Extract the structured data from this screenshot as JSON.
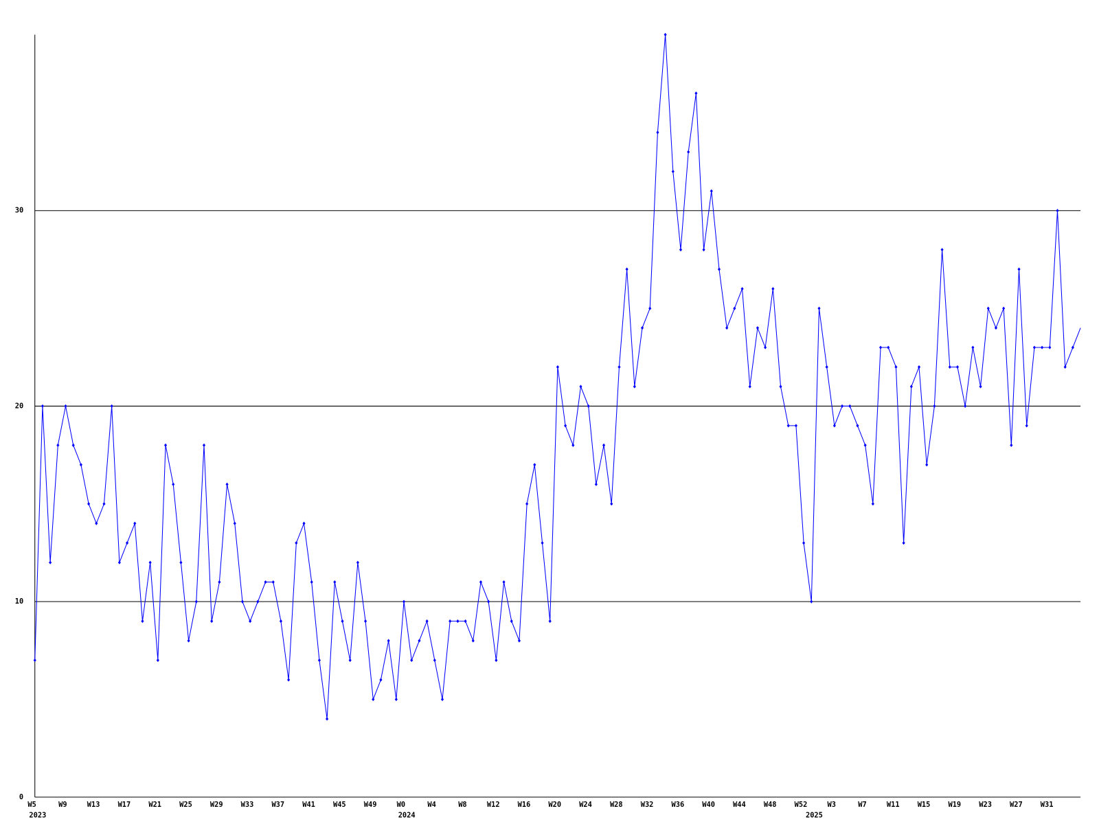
{
  "chart_data": {
    "type": "line",
    "categories": [
      "W5",
      null,
      null,
      null,
      "W9",
      null,
      null,
      null,
      "W13",
      null,
      null,
      null,
      "W17",
      null,
      null,
      null,
      "W21",
      null,
      null,
      null,
      "W25",
      null,
      null,
      null,
      "W29",
      null,
      null,
      null,
      "W33",
      null,
      null,
      null,
      "W37",
      null,
      null,
      null,
      "W41",
      null,
      null,
      null,
      "W45",
      null,
      null,
      null,
      "W49",
      null,
      null,
      null,
      "W0",
      null,
      null,
      null,
      "W4",
      null,
      null,
      null,
      "W8",
      null,
      null,
      null,
      "W12",
      null,
      null,
      null,
      "W16",
      null,
      null,
      null,
      "W20",
      null,
      null,
      null,
      "W24",
      null,
      null,
      null,
      "W28",
      null,
      null,
      null,
      "W32",
      null,
      null,
      null,
      "W36",
      null,
      null,
      null,
      "W40",
      null,
      null,
      null,
      "W44",
      null,
      null,
      null,
      "W48",
      null,
      null,
      null,
      "W52",
      null,
      null,
      null,
      "W3",
      null,
      null,
      null,
      "W7",
      null,
      null,
      null,
      "W11",
      null,
      null,
      null,
      "W15",
      null,
      null,
      null,
      "W19",
      null,
      null,
      null,
      "W23",
      null,
      null,
      null,
      "W27",
      null,
      null,
      null,
      "W31",
      null,
      null,
      null,
      null
    ],
    "x_groups": [
      {
        "label": "2023",
        "start": 0
      },
      {
        "label": "2024",
        "start": 48
      },
      {
        "label": "2025",
        "start": 101
      }
    ],
    "series": [
      {
        "color": "#0000ff",
        "values": [
          7,
          20,
          12,
          18,
          20,
          18,
          17,
          15,
          14,
          15,
          20,
          12,
          13,
          14,
          9,
          12,
          7,
          18,
          16,
          12,
          8,
          10,
          18,
          9,
          11,
          16,
          14,
          10,
          9,
          10,
          11,
          11,
          9,
          6,
          13,
          14,
          11,
          7,
          4,
          11,
          9,
          7,
          12,
          9,
          5,
          6,
          8,
          5,
          10,
          7,
          8,
          9,
          7,
          5,
          9,
          9,
          9,
          8,
          11,
          10,
          7,
          11,
          9,
          8,
          15,
          17,
          13,
          9,
          22,
          19,
          18,
          21,
          20,
          16,
          18,
          15,
          22,
          27,
          21,
          24,
          25,
          34,
          39,
          32,
          28,
          33,
          36,
          28,
          31,
          27,
          24,
          25,
          26,
          21,
          24,
          23,
          26,
          21,
          19,
          19,
          13,
          10,
          25,
          22,
          19,
          20,
          20,
          19,
          18,
          15,
          23,
          23,
          22,
          13,
          21,
          22,
          17,
          20,
          28,
          22,
          22,
          20,
          23,
          21,
          25,
          24,
          25,
          18,
          27,
          19,
          23,
          23,
          23,
          30,
          22,
          23,
          24
        ]
      }
    ],
    "ylim": [
      0,
      39
    ],
    "yticks": [
      0,
      10,
      20,
      30
    ],
    "grid": true,
    "grid_color": "#000000"
  }
}
